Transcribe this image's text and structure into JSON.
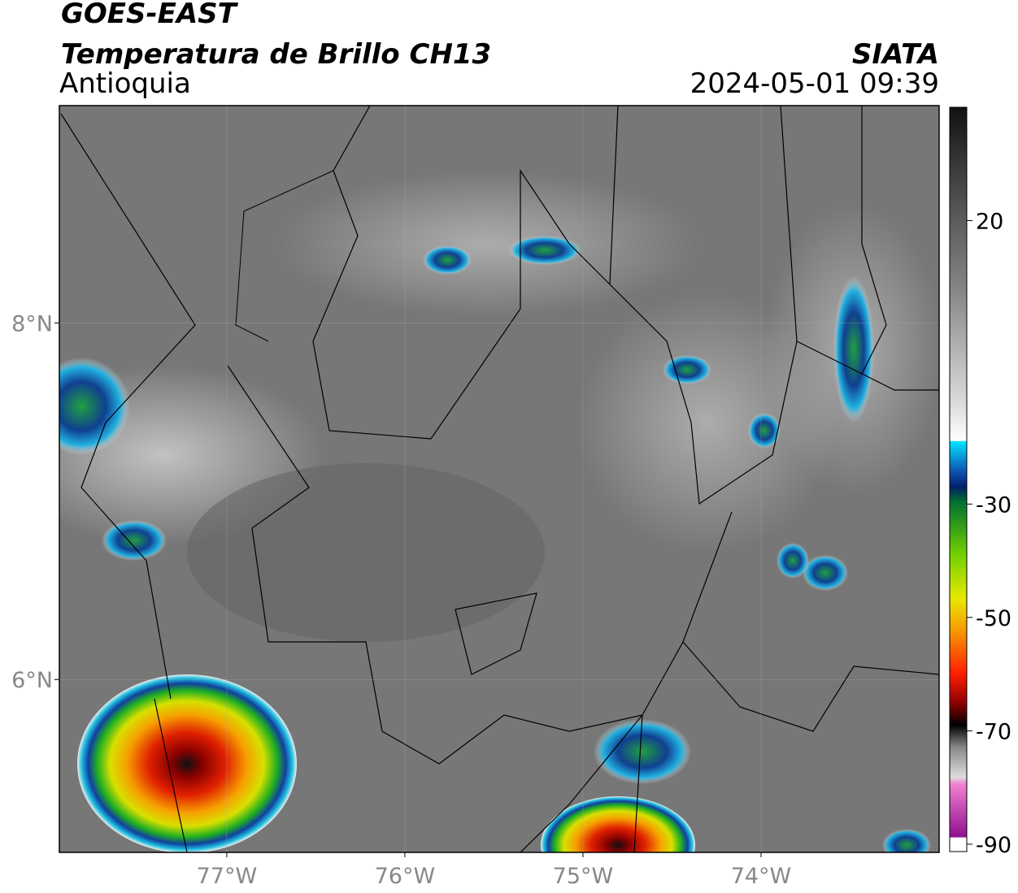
{
  "header": {
    "title": "GOES-EAST",
    "subtitle": "Temperatura de Brillo CH13",
    "region": "Antioquia",
    "source": "SIATA",
    "datetime": "2024-05-01 09:39"
  },
  "map": {
    "xlim": [
      -77.94,
      -73.0
    ],
    "ylim": [
      5.03,
      9.22
    ],
    "xticks": [
      {
        "value": -77,
        "label": "77°W"
      },
      {
        "value": -76,
        "label": "76°W"
      },
      {
        "value": -75,
        "label": "75°W"
      },
      {
        "value": -74,
        "label": "74°W"
      }
    ],
    "yticks": [
      {
        "value": 8,
        "label": "8°N"
      },
      {
        "value": 6,
        "label": "6°N"
      }
    ]
  },
  "colorbar": {
    "range": [
      -91.3,
      40
    ],
    "ticks": [
      20,
      -30,
      -50,
      -70,
      -90
    ]
  }
}
